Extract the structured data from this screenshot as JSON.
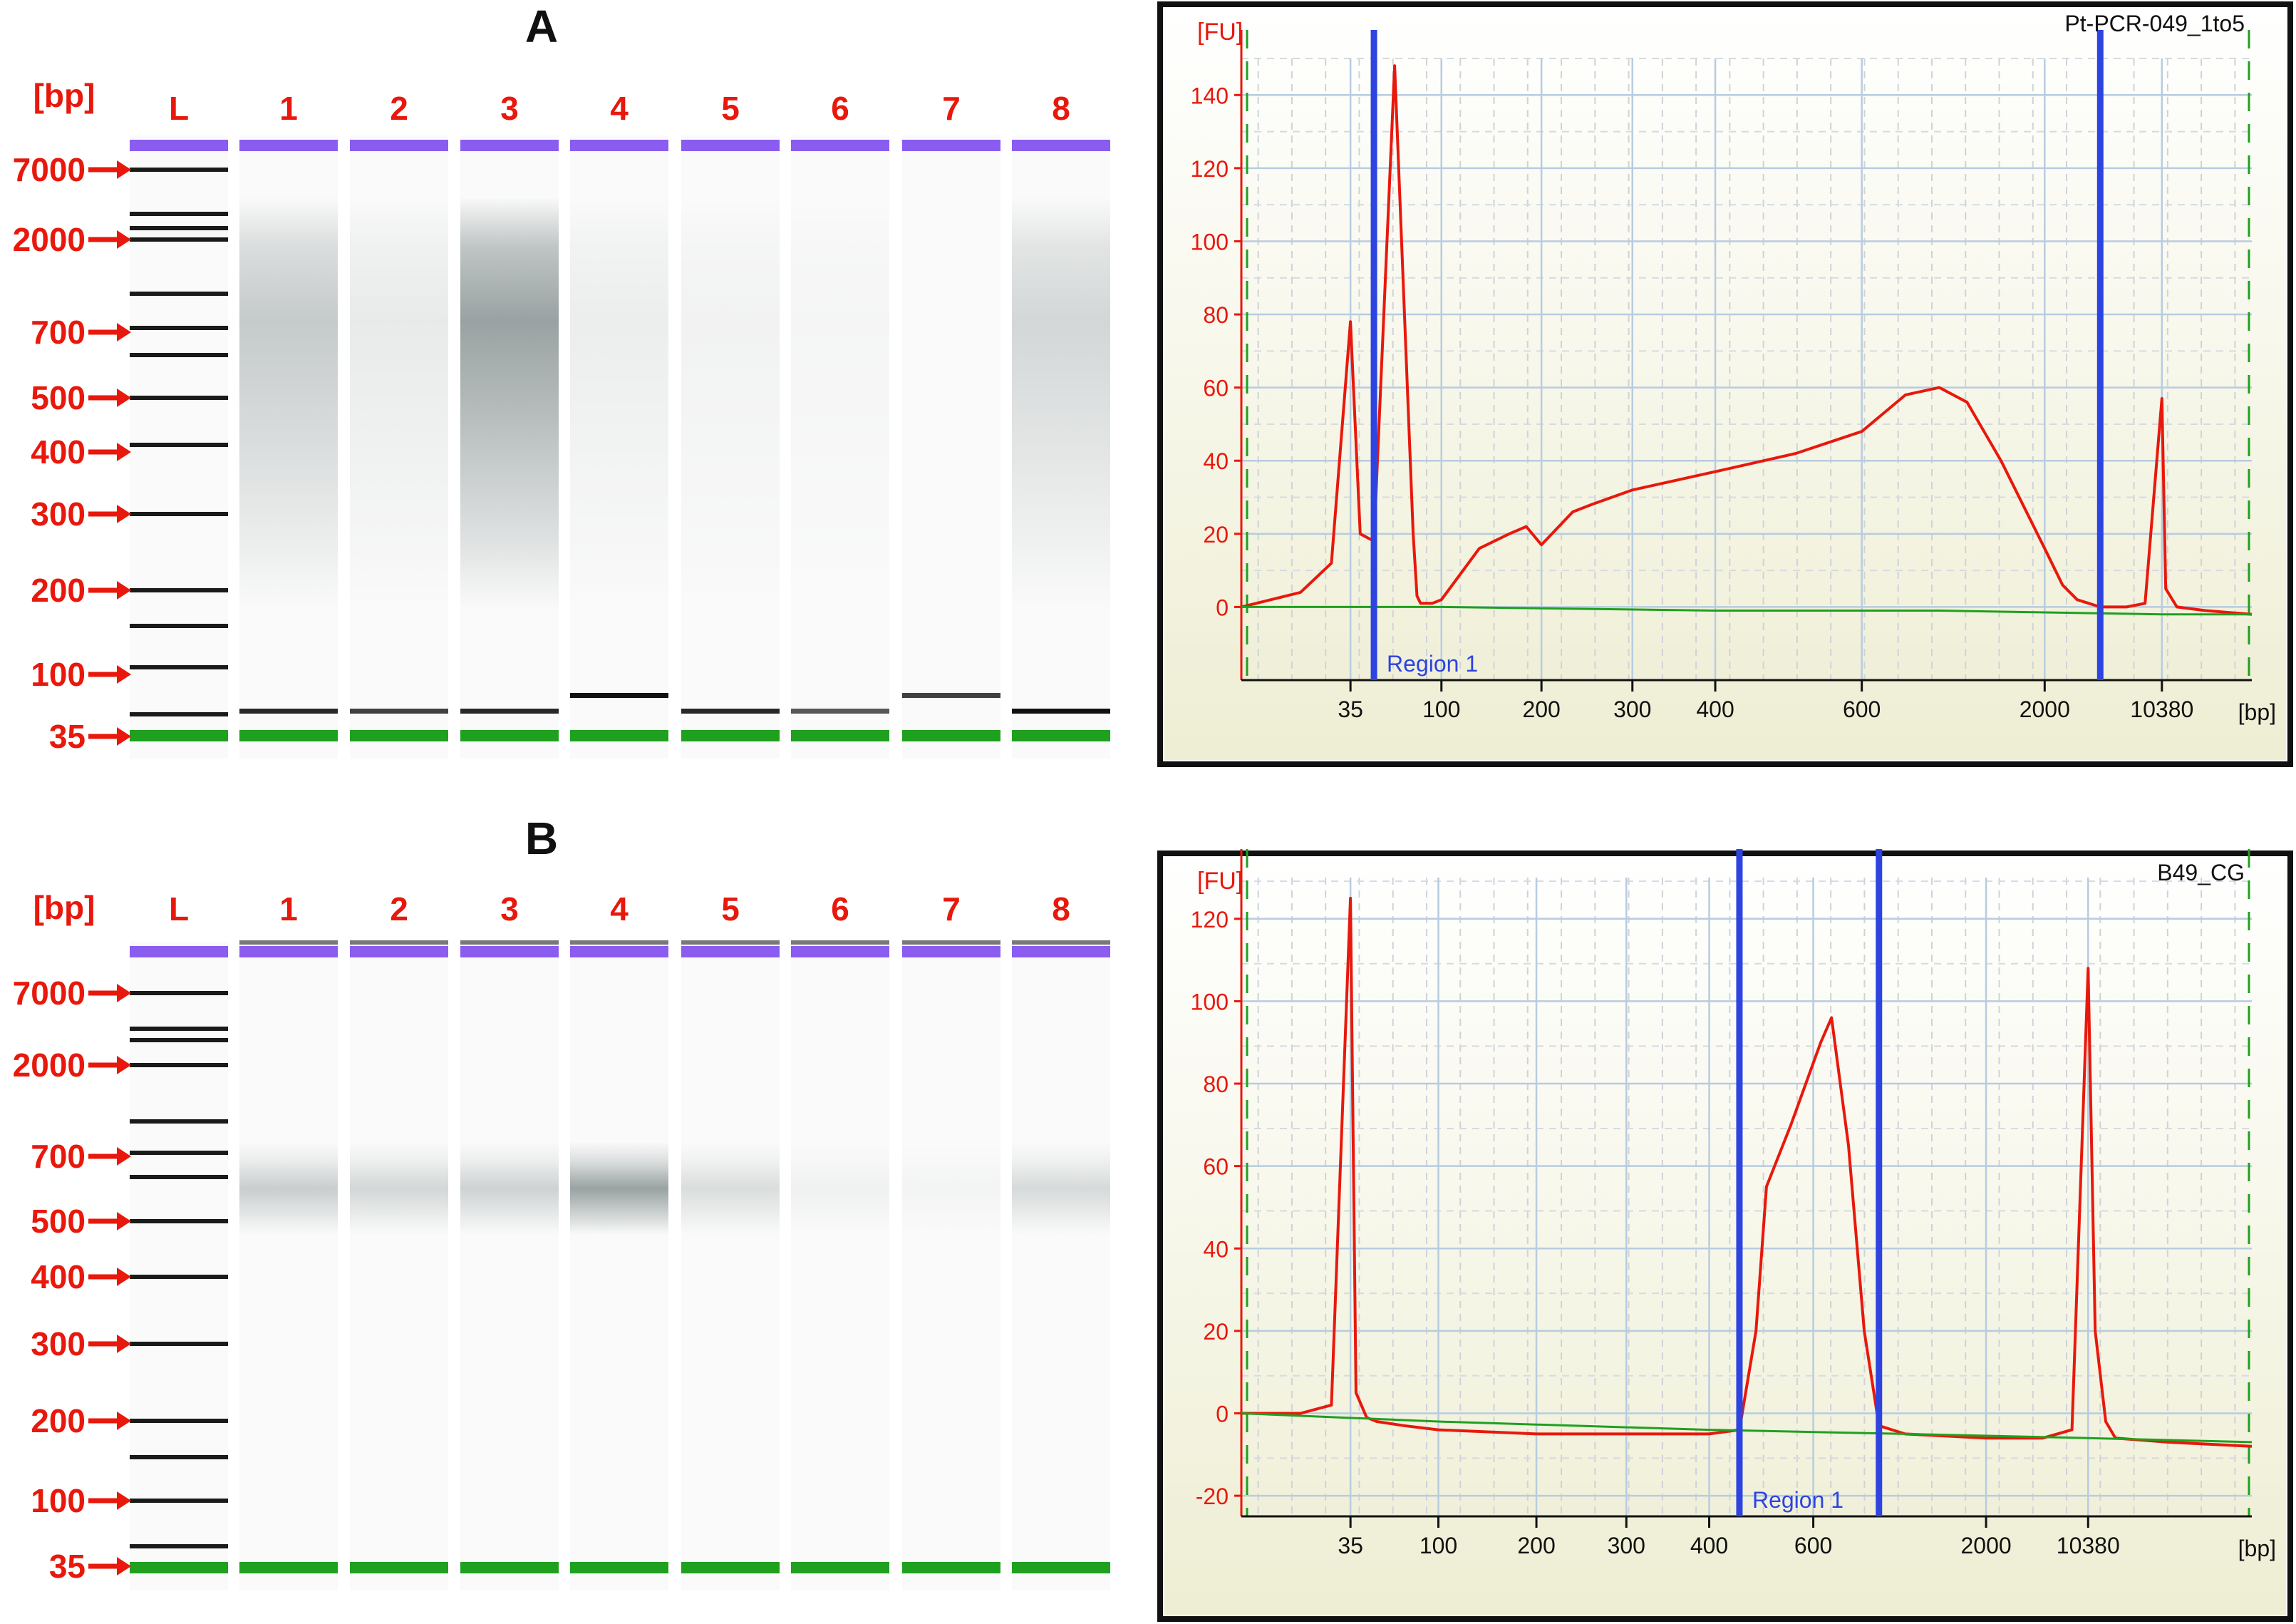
{
  "panels": [
    {
      "letter": "A",
      "gel": {
        "unit_label": "[bp]",
        "lanes": [
          "L",
          "1",
          "2",
          "3",
          "4",
          "5",
          "6",
          "7",
          "8"
        ],
        "markers": [
          "7000",
          "2000",
          "700",
          "500",
          "400",
          "300",
          "200",
          "100",
          "35"
        ],
        "colors": {
          "upper_marker": "#8a5cf0",
          "lower_marker": "#1fa01f",
          "label": "#e8180c"
        },
        "smear_intensity": [
          0.3,
          0.1,
          0.55,
          0.08,
          0.05,
          0.03,
          0.0,
          0.22
        ],
        "primer_band_intensity": [
          0.9,
          0.8,
          0.9,
          1.0,
          0.9,
          0.7,
          0.8,
          1.0
        ]
      },
      "epg": {
        "sample_name": "Pt-PCR-049_1to5",
        "y_axis_label": "[FU]",
        "x_unit": "[bp]",
        "region_label": "Region 1",
        "y_ticks": [
          "0",
          "20",
          "40",
          "60",
          "80",
          "100",
          "120",
          "140"
        ],
        "x_ticks": [
          "35",
          "100",
          "200",
          "300",
          "400",
          "600",
          "2000",
          "10380"
        ]
      }
    },
    {
      "letter": "B",
      "gel": {
        "unit_label": "[bp]",
        "lanes": [
          "L",
          "1",
          "2",
          "3",
          "4",
          "5",
          "6",
          "7",
          "8"
        ],
        "markers": [
          "7000",
          "2000",
          "700",
          "500",
          "400",
          "300",
          "200",
          "100",
          "35"
        ],
        "colors": {
          "upper_marker": "#8a5cf0",
          "lower_marker": "#1fa01f",
          "label": "#e8180c"
        },
        "smear_intensity": [
          0.28,
          0.22,
          0.25,
          0.55,
          0.18,
          0.06,
          0.04,
          0.2
        ],
        "primer_band_intensity": [
          0,
          0,
          0,
          0,
          0,
          0,
          0,
          0
        ]
      },
      "epg": {
        "sample_name": "B49_CG",
        "y_axis_label": "[FU]",
        "x_unit": "[bp]",
        "region_label": "Region 1",
        "y_ticks": [
          "-20",
          "0",
          "20",
          "40",
          "60",
          "80",
          "100",
          "120"
        ],
        "x_ticks": [
          "35",
          "100",
          "200",
          "300",
          "400",
          "600",
          "2000",
          "10380"
        ]
      }
    }
  ],
  "chart_data": [
    {
      "type": "line",
      "title": "Pt-PCR-049_1to5",
      "xlabel": "[bp]",
      "ylabel": "[FU]",
      "ylim": [
        -20,
        150
      ],
      "grid": true,
      "x_scale": "bp sizing (log-like)",
      "region_1_bp": [
        40,
        4000
      ],
      "series": [
        {
          "name": "",
          "color": "#e8180c",
          "x": [
            25,
            30,
            33,
            35,
            37,
            40,
            45,
            50,
            55,
            60,
            70,
            80,
            100,
            130,
            160,
            180,
            200,
            230,
            250,
            300,
            400,
            500,
            600,
            800,
            1000,
            1200,
            1500,
            2000,
            2500,
            3000,
            4000,
            6000,
            8000,
            10380,
            11000,
            13000,
            20000,
            40000
          ],
          "y": [
            0,
            4,
            12,
            78,
            20,
            18,
            148,
            20,
            3,
            1,
            1,
            1,
            2,
            16,
            20,
            22,
            17,
            26,
            28,
            32,
            37,
            42,
            48,
            58,
            60,
            56,
            40,
            16,
            6,
            2,
            0,
            0,
            1,
            57,
            5,
            0,
            -1,
            -2
          ]
        },
        {
          "name": "",
          "color": "#1fa01f",
          "x": [
            25,
            100,
            400,
            1000,
            10380,
            40000
          ],
          "y": [
            0,
            0,
            -1,
            -1,
            -2,
            -2
          ]
        }
      ]
    },
    {
      "type": "line",
      "title": "B49_CG",
      "xlabel": "[bp]",
      "ylabel": "[FU]",
      "ylim": [
        -25,
        130
      ],
      "grid": true,
      "x_scale": "bp sizing (log-like)",
      "region_1_bp": [
        450,
        800
      ],
      "series": [
        {
          "name": "",
          "color": "#e8180c",
          "x": [
            25,
            30,
            33,
            35,
            36,
            38,
            40,
            60,
            100,
            200,
            300,
            400,
            450,
            480,
            500,
            550,
            600,
            620,
            650,
            700,
            750,
            800,
            1000,
            2000,
            5000,
            8000,
            10380,
            11000,
            12000,
            13000,
            20000,
            40000
          ],
          "y": [
            0,
            0,
            2,
            125,
            5,
            -1,
            -2,
            -3,
            -4,
            -5,
            -5,
            -5,
            -4,
            20,
            55,
            70,
            85,
            90,
            96,
            65,
            20,
            -3,
            -5,
            -6,
            -6,
            -4,
            108,
            20,
            -2,
            -6,
            -7,
            -8
          ]
        },
        {
          "name": "",
          "color": "#1fa01f",
          "x": [
            25,
            100,
            400,
            1000,
            10380,
            40000
          ],
          "y": [
            0,
            -2,
            -4,
            -5,
            -6,
            -7
          ]
        }
      ]
    }
  ]
}
